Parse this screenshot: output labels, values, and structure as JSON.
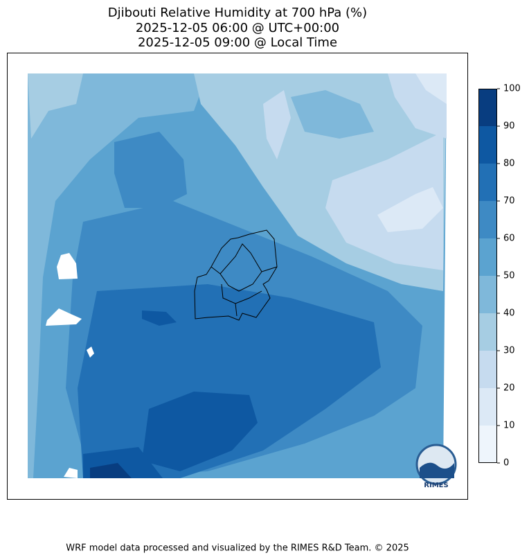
{
  "chart_data": {
    "type": "contour-map",
    "title": [
      "Djibouti Relative Humidity at 700 hPa (%)",
      "2025-12-05 06:00 @ UTC+00:00",
      "2025-12-05 09:00 @ Local Time"
    ],
    "colorbar": {
      "levels": [
        0,
        10,
        20,
        30,
        40,
        50,
        60,
        70,
        80,
        90,
        100
      ],
      "colors": [
        "#eef5fc",
        "#dce9f6",
        "#c6dbef",
        "#a6cde3",
        "#7fb8da",
        "#5ba3d0",
        "#3e8ac4",
        "#2270b5",
        "#0e58a2",
        "#083d80"
      ]
    },
    "logo_text": "RIMES",
    "footer": "WRF model data processed and visualized by the RIMES R&D Team. © 2025"
  }
}
